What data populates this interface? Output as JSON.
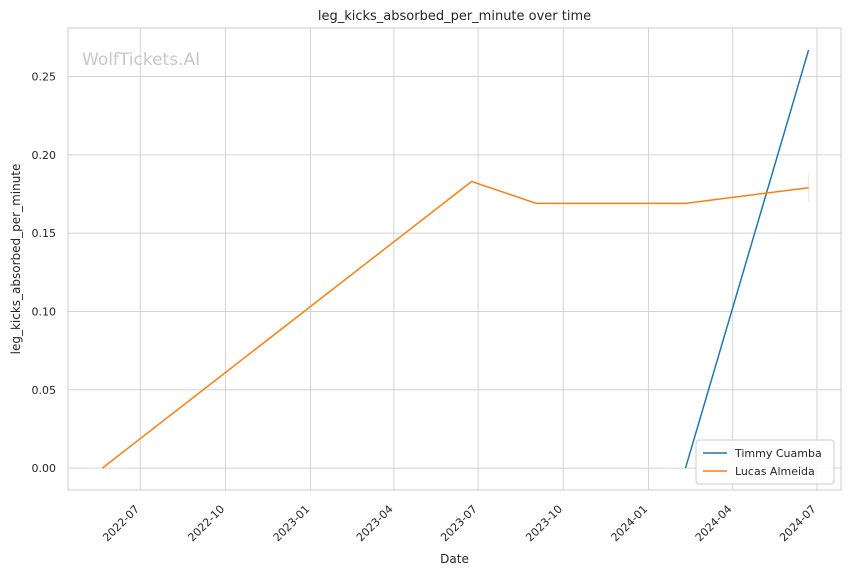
{
  "chart_data": {
    "type": "line",
    "title": "leg_kicks_absorbed_per_minute over time",
    "xlabel": "Date",
    "ylabel": "leg_kicks_absorbed_per_minute",
    "watermark": "WolfTickets.AI",
    "x_range": [
      "2022-04-14",
      "2024-07-27"
    ],
    "ylim": [
      -0.014,
      0.281
    ],
    "x_ticks": [
      "2022-07",
      "2022-10",
      "2023-01",
      "2023-04",
      "2023-07",
      "2023-10",
      "2024-01",
      "2024-04",
      "2024-07"
    ],
    "x_tick_dates": [
      "2022-07-01",
      "2022-10-01",
      "2023-01-01",
      "2023-04-01",
      "2023-07-01",
      "2023-10-01",
      "2024-01-01",
      "2024-04-01",
      "2024-07-01"
    ],
    "y_ticks": [
      "0.00",
      "0.05",
      "0.10",
      "0.15",
      "0.20",
      "0.25"
    ],
    "y_tick_values": [
      0.0,
      0.05,
      0.1,
      0.15,
      0.2,
      0.25
    ],
    "grid": true,
    "legend_position": "bottom-right",
    "series": [
      {
        "name": "Timmy Cuamba",
        "color": "#1f77b4",
        "points": [
          {
            "x": "2024-02-10",
            "y": 0.0
          },
          {
            "x": "2024-06-22",
            "y": 0.267
          }
        ]
      },
      {
        "name": "Lucas Almeida",
        "color": "#ff7f0e",
        "points": [
          {
            "x": "2022-05-21",
            "y": 0.0
          },
          {
            "x": "2023-06-24",
            "y": 0.183
          },
          {
            "x": "2023-09-02",
            "y": 0.169
          },
          {
            "x": "2024-02-10",
            "y": 0.169
          },
          {
            "x": "2024-06-22",
            "y": 0.179
          }
        ]
      }
    ]
  }
}
